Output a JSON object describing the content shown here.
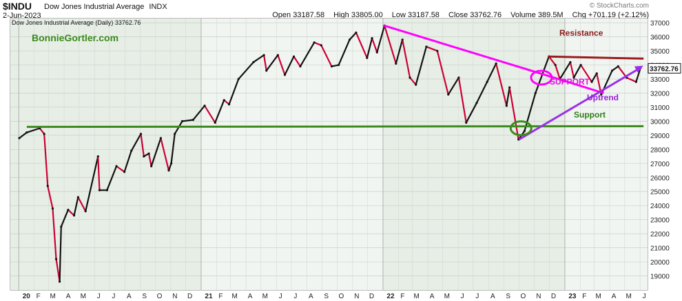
{
  "header": {
    "symbol": "$INDU",
    "name": "Dow Jones Industrial Average",
    "exchange": "INDX",
    "date": "2-Jun-2023",
    "brand": "© StockCharts.com",
    "open_label": "Open",
    "open": "33187.58",
    "high_label": "High",
    "high": "33805.00",
    "low_label": "Low",
    "low": "33187.58",
    "close_label": "Close",
    "close": "33762.76",
    "volume_label": "Volume",
    "volume": "389.5M",
    "chg_label": "Chg",
    "chg": "+701.19 (+2.12%)",
    "up_color": "#111111",
    "down_color": "#cc0033"
  },
  "chart_data": {
    "type": "line",
    "legend_text": "Dow Jones Industrial Average (Daily) 33762.76",
    "watermark": "BonnieGortler.com",
    "last_value_label": "33762.76",
    "ylim": [
      18000,
      37300
    ],
    "y_ticks": [
      19000,
      20000,
      21000,
      22000,
      23000,
      24000,
      25000,
      26000,
      27000,
      28000,
      29000,
      30000,
      31000,
      32000,
      33000,
      34000,
      35000,
      36000,
      37000
    ],
    "x_tick_labels": [
      "20",
      "F",
      "M",
      "A",
      "M",
      "J",
      "J",
      "A",
      "S",
      "O",
      "N",
      "D",
      "21",
      "F",
      "M",
      "A",
      "M",
      "J",
      "J",
      "A",
      "S",
      "O",
      "N",
      "D",
      "22",
      "F",
      "M",
      "A",
      "M",
      "J",
      "J",
      "A",
      "S",
      "O",
      "N",
      "D",
      "23",
      "F",
      "M",
      "A",
      "M",
      "J"
    ],
    "year_labels": [
      "20",
      "21",
      "22",
      "23"
    ],
    "grid": true,
    "series": [
      {
        "x": [
          "2020-01-02",
          "2020-01-17",
          "2020-02-12",
          "2020-02-21",
          "2020-02-28",
          "2020-03-09",
          "2020-03-16",
          "2020-03-23",
          "2020-03-26",
          "2020-04-09",
          "2020-04-21",
          "2020-04-29",
          "2020-05-14",
          "2020-06-08",
          "2020-06-11",
          "2020-06-26",
          "2020-07-15",
          "2020-07-31",
          "2020-08-14",
          "2020-09-02",
          "2020-09-08",
          "2020-09-18",
          "2020-09-23",
          "2020-10-12",
          "2020-10-28",
          "2020-11-02",
          "2020-11-09",
          "2020-11-24",
          "2020-12-16",
          "2021-01-08",
          "2021-01-29",
          "2021-02-16",
          "2021-02-26",
          "2021-03-17",
          "2021-04-16",
          "2021-05-07",
          "2021-05-12",
          "2021-06-04",
          "2021-06-18",
          "2021-07-06",
          "2021-07-19",
          "2021-08-16",
          "2021-08-30",
          "2021-09-20",
          "2021-10-04",
          "2021-10-26",
          "2021-11-08",
          "2021-11-30",
          "2021-12-10",
          "2021-12-20",
          "2022-01-04",
          "2022-01-27",
          "2022-02-09",
          "2022-02-24",
          "2022-03-08",
          "2022-03-29",
          "2022-04-20",
          "2022-05-12",
          "2022-06-02",
          "2022-06-17",
          "2022-07-08",
          "2022-07-29",
          "2022-08-16",
          "2022-09-06",
          "2022-09-12",
          "2022-09-30",
          "2022-10-12",
          "2022-11-03",
          "2022-11-30",
          "2022-12-13",
          "2022-12-22",
          "2023-01-12",
          "2023-01-19",
          "2023-02-02",
          "2023-02-24",
          "2023-03-06",
          "2023-03-15",
          "2023-04-06",
          "2023-04-18",
          "2023-05-05",
          "2023-05-24",
          "2023-06-02"
        ],
        "values": [
          28800,
          29200,
          29500,
          29100,
          25400,
          23800,
          20200,
          18600,
          22500,
          23700,
          23300,
          24600,
          23600,
          27500,
          25100,
          25100,
          26800,
          26400,
          27900,
          29100,
          27500,
          27700,
          26800,
          28800,
          26500,
          27000,
          29100,
          30000,
          30100,
          31100,
          29900,
          31500,
          31200,
          33000,
          34200,
          34700,
          33600,
          34700,
          33300,
          34600,
          33900,
          35600,
          35400,
          33900,
          34000,
          35800,
          36300,
          34500,
          35900,
          34900,
          36800,
          34100,
          35800,
          33100,
          32600,
          35300,
          35000,
          31900,
          33100,
          29900,
          31300,
          32800,
          34100,
          31100,
          32400,
          28700,
          29300,
          32000,
          34600,
          34000,
          33000,
          34200,
          33100,
          34000,
          32800,
          33400,
          31900,
          33600,
          33900,
          33100,
          32800,
          33800
        ]
      }
    ],
    "annotations": [
      {
        "text": "Resistance",
        "color": "#8b1a1a"
      },
      {
        "text": "SUPPORT",
        "color": "#e010e0"
      },
      {
        "text": "Uptrend",
        "color": "#9a20d8"
      },
      {
        "text": "Support",
        "color": "#2e7d1a"
      }
    ],
    "trendlines": [
      {
        "name": "support-line",
        "color": "#3c8a1c",
        "points": [
          [
            "2020-01-17",
            29600
          ],
          [
            "2023-06-08",
            29650
          ]
        ]
      },
      {
        "name": "resistance-line",
        "color": "#9b1b1b",
        "points": [
          [
            "2022-11-28",
            34600
          ],
          [
            "2023-06-08",
            34450
          ]
        ]
      },
      {
        "name": "downtrend-line",
        "color": "#ff00ff",
        "points": [
          [
            "2022-01-03",
            36800
          ],
          [
            "2022-11-22",
            33300
          ],
          [
            "2023-03-20",
            32000
          ]
        ]
      },
      {
        "name": "uptrend-line",
        "color": "#9b30e8",
        "points": [
          [
            "2022-10-01",
            28700
          ],
          [
            "2023-06-02",
            33800
          ]
        ]
      }
    ],
    "circles": [
      {
        "name": "oct-low-circle",
        "color": "#3c8a1c",
        "x": "2022-10-05",
        "y": 29500
      },
      {
        "name": "breakout-circle",
        "color": "#ff00ff",
        "x": "2022-11-15",
        "y": 33100
      }
    ]
  }
}
